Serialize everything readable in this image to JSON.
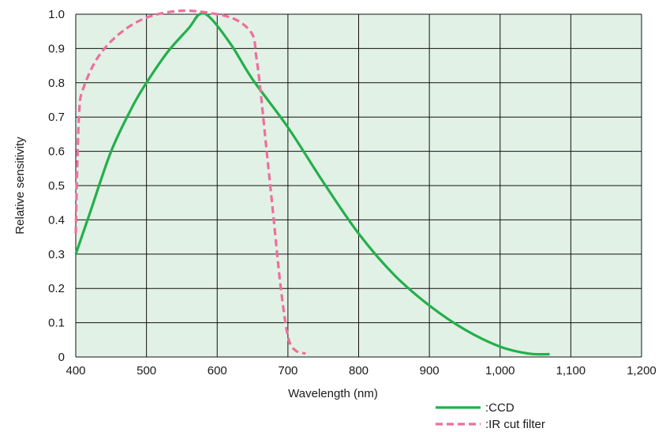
{
  "chart_data": {
    "type": "line",
    "xlabel": "Wavelength (nm)",
    "ylabel": "Relative sensitivity",
    "xlim": [
      400,
      1200
    ],
    "ylim": [
      0,
      1.0
    ],
    "x_ticks": [
      400,
      500,
      600,
      700,
      800,
      900,
      1000,
      1100,
      1200
    ],
    "x_tick_labels": [
      "400",
      "500",
      "600",
      "700",
      "800",
      "900",
      "1,000",
      "1,100",
      "1,200"
    ],
    "y_ticks": [
      0,
      0.1,
      0.2,
      0.3,
      0.4,
      0.5,
      0.6,
      0.7,
      0.8,
      0.9,
      1.0
    ],
    "y_tick_labels": [
      "0",
      "0.1",
      "0.2",
      "0.3",
      "0.4",
      "0.5",
      "0.6",
      "0.7",
      "0.8",
      "0.9",
      "1.0"
    ],
    "grid": true,
    "legend_position": "bottom-right",
    "series": [
      {
        "name": ":CCD",
        "color": "#22b04a",
        "style": "solid",
        "points": [
          [
            400,
            0.3
          ],
          [
            420,
            0.42
          ],
          [
            450,
            0.6
          ],
          [
            480,
            0.73
          ],
          [
            500,
            0.8
          ],
          [
            530,
            0.89
          ],
          [
            560,
            0.96
          ],
          [
            575,
            1.0
          ],
          [
            590,
            0.99
          ],
          [
            620,
            0.91
          ],
          [
            650,
            0.81
          ],
          [
            700,
            0.67
          ],
          [
            750,
            0.51
          ],
          [
            800,
            0.36
          ],
          [
            850,
            0.24
          ],
          [
            900,
            0.15
          ],
          [
            950,
            0.08
          ],
          [
            1000,
            0.03
          ],
          [
            1040,
            0.01
          ],
          [
            1070,
            0.008
          ]
        ]
      },
      {
        "name": ":IR cut filter",
        "color": "#ee6f9e",
        "style": "dashed",
        "points": [
          [
            400,
            0.36
          ],
          [
            402,
            0.55
          ],
          [
            405,
            0.72
          ],
          [
            410,
            0.78
          ],
          [
            430,
            0.87
          ],
          [
            460,
            0.94
          ],
          [
            500,
            0.99
          ],
          [
            550,
            1.01
          ],
          [
            600,
            1.0
          ],
          [
            630,
            0.98
          ],
          [
            650,
            0.94
          ],
          [
            655,
            0.88
          ],
          [
            660,
            0.8
          ],
          [
            670,
            0.6
          ],
          [
            680,
            0.4
          ],
          [
            690,
            0.2
          ],
          [
            700,
            0.06
          ],
          [
            710,
            0.02
          ],
          [
            725,
            0.01
          ]
        ]
      }
    ]
  }
}
